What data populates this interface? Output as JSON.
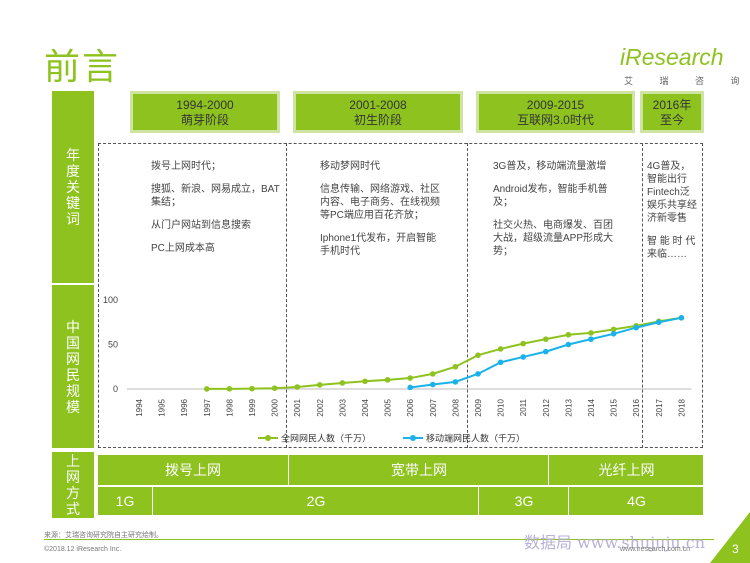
{
  "title": "前言",
  "logo": {
    "brand": "iResearch",
    "sub": "艾 瑞 咨 询"
  },
  "side_labels": {
    "keywords": "年度关键词",
    "netizens": "中国网民规模",
    "access": "上网方式"
  },
  "periods": [
    {
      "years": "1994-2000",
      "name": "萌芽阶段"
    },
    {
      "years": "2001-2008",
      "name": "初生阶段"
    },
    {
      "years": "2009-2015",
      "name": "互联网3.0时代"
    },
    {
      "years": "2016年",
      "name": "至今"
    }
  ],
  "keywords": [
    [
      "拨号上网时代；",
      "搜狐、新浪、网易成立，BAT集结；",
      "从门户网站到信息搜索",
      "PC上网成本高"
    ],
    [
      "移动梦网时代",
      "信息传输、网络游戏、社区内容、电子商务、在线视频等PC端应用百花齐放；",
      "Iphone1代发布，开启智能手机时代"
    ],
    [
      "3G普及，移动端流量激增",
      "Android发布，智能手机普及；",
      "社交火热、电商爆发、百团大战，超级流量APP形成大势；"
    ],
    [
      "4G普及，智能出行Fintech泛娱乐共享经济新零售",
      "智 能 时 代来临……"
    ]
  ],
  "chart_data": {
    "type": "line",
    "x": [
      "1994",
      "1995",
      "1996",
      "1997",
      "1998",
      "1999",
      "2000",
      "2001",
      "2002",
      "2003",
      "2004",
      "2005",
      "2006",
      "2007",
      "2008",
      "2009",
      "2010",
      "2011",
      "2012",
      "2013",
      "2014",
      "2015",
      "2016",
      "2017",
      "2018"
    ],
    "yticks": [
      "0",
      "50",
      "100"
    ],
    "ylim": [
      0,
      100
    ],
    "series": [
      {
        "name": "全网网民人数（千万）",
        "color": "#8dc21f",
        "values": [
          null,
          null,
          null,
          0.1,
          0.2,
          0.4,
          0.9,
          2.2,
          4.6,
          6.8,
          8.7,
          10.3,
          12.3,
          17.0,
          25.0,
          38.0,
          45.0,
          51.0,
          56.0,
          61.0,
          63.0,
          67.0,
          71.0,
          76.0,
          80.0
        ]
      },
      {
        "name": "移动端网民人数（千万）",
        "color": "#1ab2e8",
        "values": [
          null,
          null,
          null,
          null,
          null,
          null,
          null,
          null,
          null,
          null,
          null,
          null,
          1.7,
          5.0,
          8.0,
          17.0,
          30.0,
          36.0,
          42.0,
          50.0,
          56.0,
          62.0,
          69.0,
          75.0,
          80.0
        ]
      }
    ]
  },
  "access_methods": {
    "row1": [
      "拨号上网",
      "宽带上网",
      "光纤上网"
    ],
    "row2": [
      "1G",
      "2G",
      "3G",
      "4G"
    ]
  },
  "footer": {
    "source": "来源：艾瑞咨询研究院自主研究绘制。",
    "copyright": "©2018.12 iResearch Inc.",
    "url": "www.iresearch.com.cn",
    "watermark": "数据局 www.shujuju.cn",
    "page": "3"
  },
  "colors": {
    "accent": "#8dc21f",
    "mobile": "#1ab2e8",
    "period_border": "#cfe3a2"
  }
}
